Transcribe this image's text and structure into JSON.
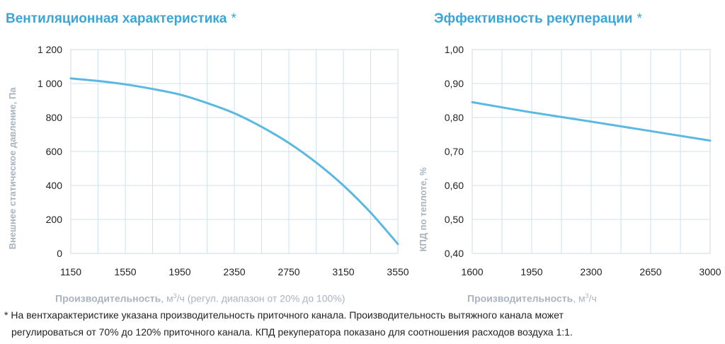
{
  "charts_text": {
    "left_title": "Вентиляционная характеристика",
    "right_title": "Эффективность рекуперации",
    "star": "*",
    "left_ylabel": "Внешнее статическое давление, Па",
    "right_ylabel": "КПД по теплоте, %",
    "left_xlabel_bold": "Производительность",
    "left_xlabel_unit_pre": ", м",
    "left_xlabel_sup": "3",
    "left_xlabel_unit_post": "/ч",
    "left_xlabel_rest": " (регул. диапазон от 20% до 100%)",
    "right_xlabel_bold": "Производительность",
    "right_xlabel_unit_pre": ", м",
    "right_xlabel_sup": "3",
    "right_xlabel_unit_post": "/ч"
  },
  "footnote": {
    "line1": "* На вентхарактеристике указана производительность приточного канала. Производительность вытяжного канала может",
    "line2": "регулироваться от 70% до 120% приточного канала. КПД рекуператора показано для соотношения расходов воздуха 1:1."
  },
  "chart_data": [
    {
      "type": "line",
      "title": "Вентиляционная характеристика",
      "xlabel": "Производительность, м3/ч (регул. диапазон от 20% до 100%)",
      "ylabel": "Внешнее статическое давление, Па",
      "x_ticks": [
        "1150",
        "1550",
        "1950",
        "2350",
        "2750",
        "3150",
        "3550"
      ],
      "y_ticks": [
        "0",
        "200",
        "400",
        "600",
        "800",
        "1 000",
        "1 200"
      ],
      "xlim": [
        1150,
        3550
      ],
      "ylim": [
        0,
        1200
      ],
      "grid": true,
      "color": "#5bb8e0",
      "x": [
        1150,
        1350,
        1550,
        1750,
        1950,
        2150,
        2350,
        2550,
        2750,
        2950,
        3150,
        3350,
        3550
      ],
      "y": [
        1030,
        1015,
        995,
        968,
        935,
        885,
        825,
        745,
        650,
        535,
        400,
        240,
        55
      ]
    },
    {
      "type": "line",
      "title": "Эффективность рекуперации",
      "xlabel": "Производительность, м3/ч",
      "ylabel": "КПД по теплоте, %",
      "x_ticks": [
        "1600",
        "1950",
        "2300",
        "2650",
        "3000"
      ],
      "y_ticks": [
        "0,40",
        "0,50",
        "0,60",
        "0,70",
        "0,80",
        "0,90",
        "1,00"
      ],
      "xlim": [
        1600,
        3000
      ],
      "ylim": [
        0.4,
        1.0
      ],
      "grid": true,
      "color": "#5bb8e0",
      "x": [
        1600,
        1950,
        2300,
        2650,
        3000
      ],
      "y": [
        0.845,
        0.815,
        0.788,
        0.76,
        0.732
      ]
    }
  ]
}
